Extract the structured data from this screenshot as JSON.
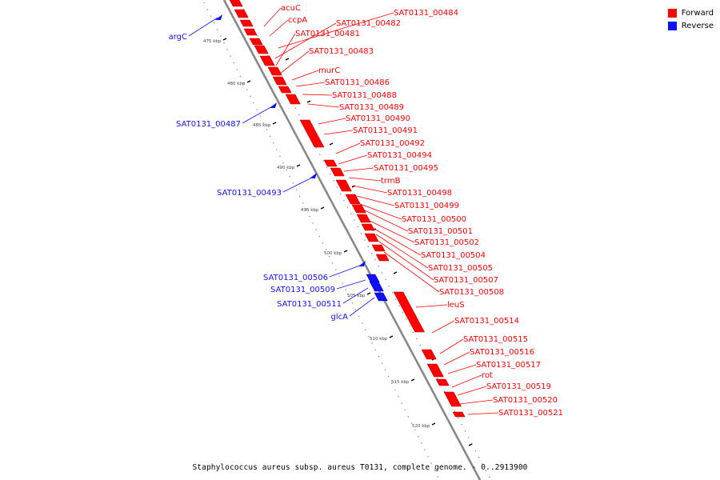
{
  "colors": {
    "forward": "#ff0000",
    "reverse": "#1010ff",
    "backbone": "#888888",
    "ticks": "#000000"
  },
  "legend": [
    {
      "label": "Forward",
      "color": "#ff0000"
    },
    {
      "label": "Reverse",
      "color": "#1010ff"
    }
  ],
  "footer": {
    "caption": "Staphylococcus aureus subsp. aureus T0131, complete genome. - 0..2913900"
  },
  "axis": {
    "unit": "kbp",
    "ticks": [
      "475 kbp",
      "480 kbp",
      "485 kbp",
      "490 kbp",
      "495 kbp",
      "500 kbp",
      "505 kbp",
      "510 kbp",
      "515 kbp",
      "520 kbp"
    ]
  },
  "genes": {
    "forward": [
      "acuC",
      "ccpA",
      "SAT0131_00484",
      "SAT0131_00482",
      "SAT0131_00481",
      "SAT0131_00483",
      "murC",
      "SAT0131_00486",
      "SAT0131_00488",
      "SAT0131_00489",
      "SAT0131_00490",
      "SAT0131_00491",
      "SAT0131_00492",
      "SAT0131_00494",
      "SAT0131_00495",
      "trmB",
      "SAT0131_00498",
      "SAT0131_00499",
      "SAT0131_00500",
      "SAT0131_00501",
      "SAT0131_00502",
      "SAT0131_00504",
      "SAT0131_00505",
      "SAT0131_00507",
      "SAT0131_00508",
      "leuS",
      "SAT0131_00514",
      "SAT0131_00515",
      "SAT0131_00516",
      "SAT0131_00517",
      "rot",
      "SAT0131_00519",
      "SAT0131_00520",
      "SAT0131_00521"
    ],
    "reverse": [
      "argC",
      "SAT0131_00487",
      "SAT0131_00493",
      "SAT0131_00506",
      "SAT0131_00509",
      "SAT0131_00511",
      "glcA"
    ]
  }
}
